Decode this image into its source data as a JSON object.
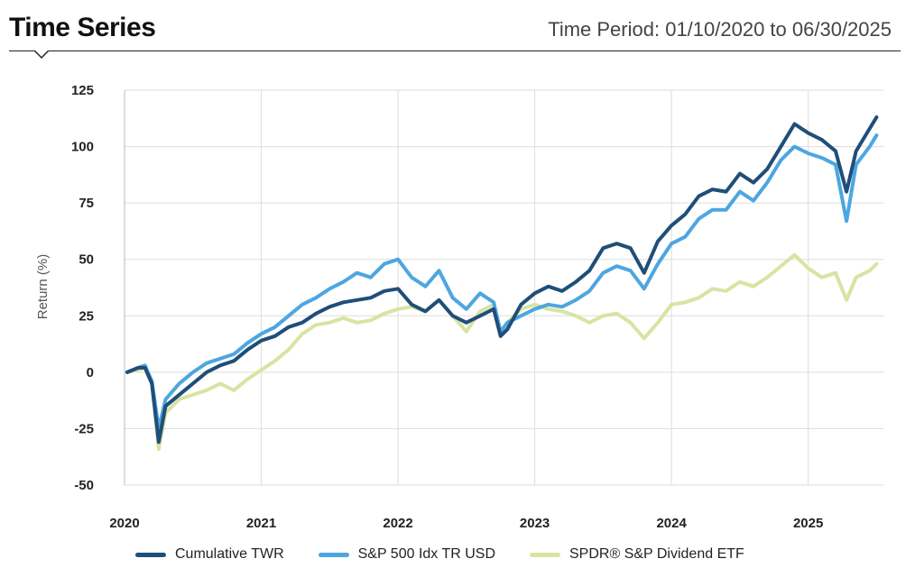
{
  "header": {
    "title": "Time Series",
    "period": "Time Period: 01/10/2020 to 06/30/2025"
  },
  "chart_data": {
    "type": "line",
    "title": "Time Series",
    "ylabel": "Return (%)",
    "xlabel": "",
    "xlim": [
      2020.0,
      2025.55
    ],
    "ylim": [
      -50,
      125
    ],
    "y_ticks": [
      125,
      100,
      75,
      50,
      25,
      0,
      -25,
      -50
    ],
    "x_ticks": [
      "2020",
      "2021",
      "2022",
      "2023",
      "2024",
      "2025"
    ],
    "grid": true,
    "legend_position": "bottom",
    "series": [
      {
        "name": "Cumulative TWR",
        "color": "#1f4e79",
        "points": [
          [
            2020.02,
            0
          ],
          [
            2020.1,
            2
          ],
          [
            2020.15,
            2
          ],
          [
            2020.2,
            -5
          ],
          [
            2020.25,
            -31
          ],
          [
            2020.3,
            -15
          ],
          [
            2020.4,
            -10
          ],
          [
            2020.5,
            -5
          ],
          [
            2020.6,
            0
          ],
          [
            2020.7,
            3
          ],
          [
            2020.8,
            5
          ],
          [
            2020.9,
            10
          ],
          [
            2021.0,
            14
          ],
          [
            2021.1,
            16
          ],
          [
            2021.2,
            20
          ],
          [
            2021.3,
            22
          ],
          [
            2021.4,
            26
          ],
          [
            2021.5,
            29
          ],
          [
            2021.6,
            31
          ],
          [
            2021.7,
            32
          ],
          [
            2021.8,
            33
          ],
          [
            2021.9,
            36
          ],
          [
            2022.0,
            37
          ],
          [
            2022.1,
            30
          ],
          [
            2022.2,
            27
          ],
          [
            2022.3,
            32
          ],
          [
            2022.4,
            25
          ],
          [
            2022.5,
            22
          ],
          [
            2022.6,
            25
          ],
          [
            2022.7,
            28
          ],
          [
            2022.75,
            16
          ],
          [
            2022.8,
            19
          ],
          [
            2022.9,
            30
          ],
          [
            2023.0,
            35
          ],
          [
            2023.1,
            38
          ],
          [
            2023.2,
            36
          ],
          [
            2023.3,
            40
          ],
          [
            2023.4,
            45
          ],
          [
            2023.5,
            55
          ],
          [
            2023.6,
            57
          ],
          [
            2023.7,
            55
          ],
          [
            2023.8,
            44
          ],
          [
            2023.9,
            58
          ],
          [
            2024.0,
            65
          ],
          [
            2024.1,
            70
          ],
          [
            2024.2,
            78
          ],
          [
            2024.3,
            81
          ],
          [
            2024.4,
            80
          ],
          [
            2024.5,
            88
          ],
          [
            2024.6,
            84
          ],
          [
            2024.7,
            90
          ],
          [
            2024.8,
            100
          ],
          [
            2024.9,
            110
          ],
          [
            2025.0,
            106
          ],
          [
            2025.1,
            103
          ],
          [
            2025.2,
            98
          ],
          [
            2025.28,
            80
          ],
          [
            2025.35,
            98
          ],
          [
            2025.45,
            108
          ],
          [
            2025.5,
            113
          ]
        ]
      },
      {
        "name": "S&P 500 Idx TR USD",
        "color": "#4da6e0",
        "points": [
          [
            2020.02,
            0
          ],
          [
            2020.1,
            2
          ],
          [
            2020.15,
            3
          ],
          [
            2020.2,
            -4
          ],
          [
            2020.25,
            -25
          ],
          [
            2020.3,
            -12
          ],
          [
            2020.4,
            -5
          ],
          [
            2020.5,
            0
          ],
          [
            2020.6,
            4
          ],
          [
            2020.7,
            6
          ],
          [
            2020.8,
            8
          ],
          [
            2020.9,
            13
          ],
          [
            2021.0,
            17
          ],
          [
            2021.1,
            20
          ],
          [
            2021.2,
            25
          ],
          [
            2021.3,
            30
          ],
          [
            2021.4,
            33
          ],
          [
            2021.5,
            37
          ],
          [
            2021.6,
            40
          ],
          [
            2021.7,
            44
          ],
          [
            2021.8,
            42
          ],
          [
            2021.9,
            48
          ],
          [
            2022.0,
            50
          ],
          [
            2022.1,
            42
          ],
          [
            2022.2,
            38
          ],
          [
            2022.3,
            45
          ],
          [
            2022.4,
            33
          ],
          [
            2022.5,
            28
          ],
          [
            2022.6,
            35
          ],
          [
            2022.7,
            31
          ],
          [
            2022.75,
            18
          ],
          [
            2022.8,
            22
          ],
          [
            2022.9,
            25
          ],
          [
            2023.0,
            28
          ],
          [
            2023.1,
            30
          ],
          [
            2023.2,
            29
          ],
          [
            2023.3,
            32
          ],
          [
            2023.4,
            36
          ],
          [
            2023.5,
            44
          ],
          [
            2023.6,
            47
          ],
          [
            2023.7,
            45
          ],
          [
            2023.8,
            37
          ],
          [
            2023.9,
            48
          ],
          [
            2024.0,
            57
          ],
          [
            2024.1,
            60
          ],
          [
            2024.2,
            68
          ],
          [
            2024.3,
            72
          ],
          [
            2024.4,
            72
          ],
          [
            2024.5,
            80
          ],
          [
            2024.6,
            76
          ],
          [
            2024.7,
            84
          ],
          [
            2024.8,
            94
          ],
          [
            2024.9,
            100
          ],
          [
            2025.0,
            97
          ],
          [
            2025.1,
            95
          ],
          [
            2025.2,
            92
          ],
          [
            2025.28,
            67
          ],
          [
            2025.35,
            92
          ],
          [
            2025.45,
            100
          ],
          [
            2025.5,
            105
          ]
        ]
      },
      {
        "name": "SPDR® S&P Dividend ETF",
        "color": "#d9e3a3",
        "points": [
          [
            2020.02,
            0
          ],
          [
            2020.1,
            1
          ],
          [
            2020.15,
            2
          ],
          [
            2020.2,
            -5
          ],
          [
            2020.25,
            -34
          ],
          [
            2020.3,
            -18
          ],
          [
            2020.4,
            -12
          ],
          [
            2020.5,
            -10
          ],
          [
            2020.6,
            -8
          ],
          [
            2020.7,
            -5
          ],
          [
            2020.8,
            -8
          ],
          [
            2020.9,
            -3
          ],
          [
            2021.0,
            1
          ],
          [
            2021.1,
            5
          ],
          [
            2021.2,
            10
          ],
          [
            2021.3,
            17
          ],
          [
            2021.4,
            21
          ],
          [
            2021.5,
            22
          ],
          [
            2021.6,
            24
          ],
          [
            2021.7,
            22
          ],
          [
            2021.8,
            23
          ],
          [
            2021.9,
            26
          ],
          [
            2022.0,
            28
          ],
          [
            2022.1,
            29
          ],
          [
            2022.2,
            27
          ],
          [
            2022.3,
            32
          ],
          [
            2022.4,
            25
          ],
          [
            2022.5,
            18
          ],
          [
            2022.6,
            27
          ],
          [
            2022.7,
            30
          ],
          [
            2022.75,
            17
          ],
          [
            2022.8,
            22
          ],
          [
            2022.9,
            28
          ],
          [
            2023.0,
            30
          ],
          [
            2023.1,
            28
          ],
          [
            2023.2,
            27
          ],
          [
            2023.3,
            25
          ],
          [
            2023.4,
            22
          ],
          [
            2023.5,
            25
          ],
          [
            2023.6,
            26
          ],
          [
            2023.7,
            22
          ],
          [
            2023.8,
            15
          ],
          [
            2023.9,
            22
          ],
          [
            2024.0,
            30
          ],
          [
            2024.1,
            31
          ],
          [
            2024.2,
            33
          ],
          [
            2024.3,
            37
          ],
          [
            2024.4,
            36
          ],
          [
            2024.5,
            40
          ],
          [
            2024.6,
            38
          ],
          [
            2024.7,
            42
          ],
          [
            2024.8,
            47
          ],
          [
            2024.9,
            52
          ],
          [
            2025.0,
            46
          ],
          [
            2025.1,
            42
          ],
          [
            2025.2,
            44
          ],
          [
            2025.28,
            32
          ],
          [
            2025.35,
            42
          ],
          [
            2025.45,
            45
          ],
          [
            2025.5,
            48
          ]
        ]
      }
    ]
  }
}
